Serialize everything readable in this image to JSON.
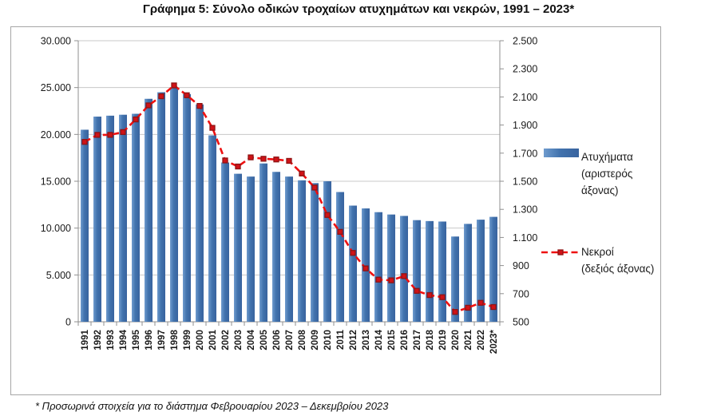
{
  "title": "Γράφημα 5: Σύνολο οδικών τροχαίων ατυχημάτων και νεκρών, 1991 – 2023*",
  "footnote": "* Προσωρινά στοιχεία για το διάστημα Φεβρουαρίου 2023 – Δεκεμβρίου 2023",
  "chart_data": {
    "type": "bar",
    "subtype": "combo-bar-line-dual-axis",
    "categories": [
      "1991",
      "1992",
      "1993",
      "1994",
      "1995",
      "1996",
      "1997",
      "1998",
      "1999",
      "2000",
      "2001",
      "2002",
      "2003",
      "2004",
      "2005",
      "2006",
      "2007",
      "2008",
      "2009",
      "2010",
      "2011",
      "2012",
      "2013",
      "2014",
      "2015",
      "2016",
      "2017",
      "2018",
      "2019",
      "2020",
      "2021",
      "2022",
      "2023*"
    ],
    "series": [
      {
        "name": "Ατυχήματα (αριστερός άξονας)",
        "type": "bar",
        "axis": "left",
        "values": [
          20500,
          21900,
          22000,
          22100,
          22200,
          23800,
          24500,
          25000,
          24300,
          23200,
          19900,
          17000,
          15800,
          15500,
          16900,
          16000,
          15500,
          15100,
          14800,
          15000,
          13850,
          12400,
          12100,
          11700,
          11450,
          11300,
          10850,
          10750,
          10700,
          9100,
          10450,
          10900,
          11200
        ]
      },
      {
        "name": "Νεκροί (δεξιός άξονας)",
        "type": "line",
        "axis": "right",
        "values": [
          1780,
          1830,
          1830,
          1850,
          1940,
          2040,
          2105,
          2182,
          2112,
          2036,
          1880,
          1648,
          1605,
          1670,
          1660,
          1655,
          1645,
          1555,
          1455,
          1260,
          1140,
          990,
          880,
          800,
          795,
          825,
          720,
          690,
          675,
          570,
          600,
          635,
          605
        ]
      }
    ],
    "left_axis": {
      "min": 0,
      "max": 30000,
      "step": 5000,
      "tick_labels": [
        "0",
        "5.000",
        "10.000",
        "15.000",
        "20.000",
        "25.000",
        "30.000"
      ]
    },
    "right_axis": {
      "min": 500,
      "max": 2500,
      "step": 200,
      "tick_labels": [
        "500",
        "700",
        "900",
        "1.100",
        "1.300",
        "1.500",
        "1.700",
        "1.900",
        "2.100",
        "2.300",
        "2.500"
      ]
    },
    "x_axis": {
      "labels_rotation": -90
    },
    "grid": true,
    "legend": {
      "position": "right",
      "items": [
        {
          "swatch": "bar-swatch",
          "lines": [
            "Ατυχήματα",
            "(αριστερός",
            "άξονας)"
          ]
        },
        {
          "swatch": "dashed-line-swatch",
          "lines": [
            "Νεκροί",
            "(δεξιός άξονας)"
          ]
        }
      ]
    },
    "colors": {
      "bar_fill": "#4273ae",
      "bar_fill_light": "#6f9bce",
      "bar_fill_dark": "#38639e",
      "line": "#ee1111",
      "marker_fill": "#d01217",
      "marker_edge": "#8e1414",
      "grid": "#c8c8c8",
      "frame": "#8f8f8f",
      "text": "#1a1a1a"
    }
  }
}
